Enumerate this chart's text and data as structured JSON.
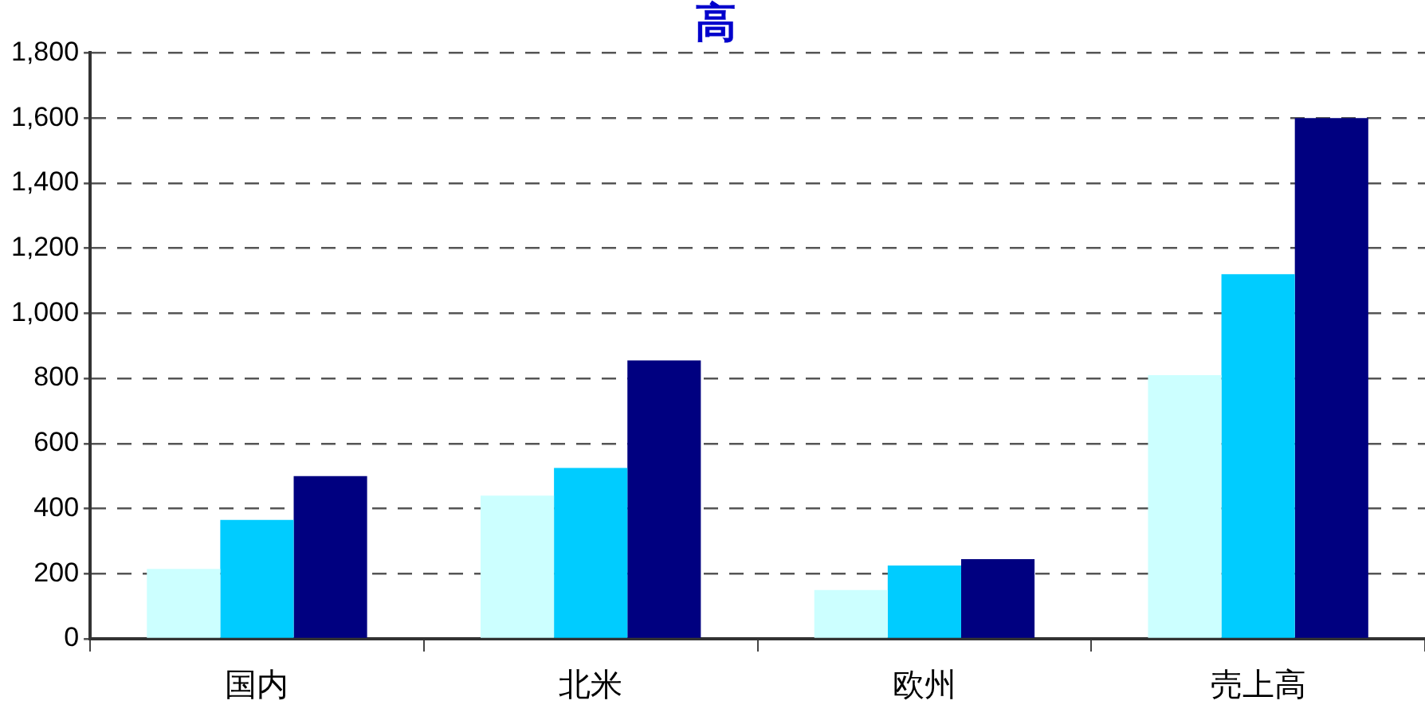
{
  "chart_data": {
    "type": "bar",
    "title": "高",
    "categories": [
      "国内",
      "北米",
      "欧州",
      "売上高"
    ],
    "series": [
      {
        "color": "#ccffff",
        "values": [
          215,
          440,
          150,
          810
        ]
      },
      {
        "color": "#00ccff",
        "values": [
          365,
          525,
          225,
          1120
        ]
      },
      {
        "color": "#000080",
        "values": [
          500,
          855,
          245,
          1600
        ]
      }
    ],
    "ylim": [
      0,
      1800
    ],
    "yticks": [
      0,
      200,
      400,
      600,
      800,
      {
        "value": 1000,
        "label": "1,000"
      },
      {
        "value": 1200,
        "label": "1,200"
      },
      {
        "value": 1400,
        "label": "1,400"
      },
      {
        "value": 1600,
        "label": "1,600"
      },
      {
        "value": 1800,
        "label": "1,800"
      }
    ],
    "grid": "y",
    "legend": false
  }
}
